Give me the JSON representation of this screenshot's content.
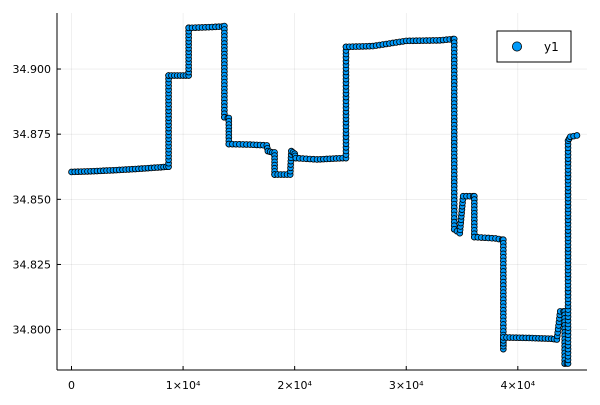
{
  "chart_data": {
    "type": "scatter",
    "xlim": [
      -1300,
      46200
    ],
    "ylim": [
      34.7845,
      34.9215
    ],
    "grid": true,
    "legend_position": "top-right",
    "x_ticks": [
      {
        "value": 0,
        "label": "0"
      },
      {
        "value": 10000,
        "label": "1×10⁴"
      },
      {
        "value": 20000,
        "label": "2×10⁴"
      },
      {
        "value": 30000,
        "label": "3×10⁴"
      },
      {
        "value": 40000,
        "label": "4×10⁴"
      }
    ],
    "y_ticks": [
      {
        "value": 34.8,
        "label": "34.800"
      },
      {
        "value": 34.825,
        "label": "34.825"
      },
      {
        "value": 34.85,
        "label": "34.850"
      },
      {
        "value": 34.875,
        "label": "34.875"
      },
      {
        "value": 34.9,
        "label": "34.900"
      }
    ],
    "series": [
      {
        "name": "y1",
        "color": "#009AFA",
        "marker": "circle",
        "points": [
          [
            0,
            34.8605
          ],
          [
            2000,
            34.8608
          ],
          [
            4000,
            34.8612
          ],
          [
            6000,
            34.8617
          ],
          [
            8000,
            34.8623
          ],
          [
            8500,
            34.8625
          ],
          [
            8700,
            34.8625
          ],
          [
            8700,
            34.8975
          ],
          [
            8700,
            34.8975
          ],
          [
            10000,
            34.8975
          ],
          [
            10500,
            34.8975
          ],
          [
            10500,
            34.9158
          ],
          [
            10500,
            34.9158
          ],
          [
            12000,
            34.916
          ],
          [
            13500,
            34.9163
          ],
          [
            13700,
            34.9165
          ],
          [
            13700,
            34.8815
          ],
          [
            13700,
            34.8815
          ],
          [
            14000,
            34.8812
          ],
          [
            14100,
            34.8812
          ],
          [
            14100,
            34.8712
          ],
          [
            14100,
            34.8712
          ],
          [
            16000,
            34.871
          ],
          [
            17500,
            34.8707
          ],
          [
            17600,
            34.8685
          ],
          [
            18000,
            34.868
          ],
          [
            18200,
            34.868
          ],
          [
            18200,
            34.8595
          ],
          [
            18200,
            34.8595
          ],
          [
            19600,
            34.8595
          ],
          [
            19700,
            34.8685
          ],
          [
            20000,
            34.8675
          ],
          [
            20100,
            34.8658
          ],
          [
            22000,
            34.8653
          ],
          [
            24300,
            34.8658
          ],
          [
            24600,
            34.8658
          ],
          [
            24600,
            34.9085
          ],
          [
            24600,
            34.9085
          ],
          [
            27000,
            34.9088
          ],
          [
            30000,
            34.9108
          ],
          [
            33000,
            34.911
          ],
          [
            34200,
            34.9115
          ],
          [
            34300,
            34.9115
          ],
          [
            34300,
            34.8385
          ],
          [
            34300,
            34.8385
          ],
          [
            34800,
            34.837
          ],
          [
            35100,
            34.8512
          ],
          [
            36000,
            34.8512
          ],
          [
            36100,
            34.8512
          ],
          [
            36100,
            34.8355
          ],
          [
            36100,
            34.8355
          ],
          [
            38000,
            34.835
          ],
          [
            38600,
            34.8345
          ],
          [
            38700,
            34.8345
          ],
          [
            38700,
            34.7925
          ],
          [
            38700,
            34.797
          ],
          [
            41000,
            34.7968
          ],
          [
            43000,
            34.7965
          ],
          [
            43500,
            34.7962
          ],
          [
            43800,
            34.807
          ],
          [
            44100,
            34.807
          ],
          [
            44200,
            34.807
          ],
          [
            44200,
            34.787
          ],
          [
            44200,
            34.787
          ],
          [
            44400,
            34.787
          ],
          [
            44500,
            34.787
          ],
          [
            44500,
            34.8725
          ],
          [
            44700,
            34.874
          ],
          [
            45300,
            34.8745
          ]
        ]
      }
    ]
  }
}
